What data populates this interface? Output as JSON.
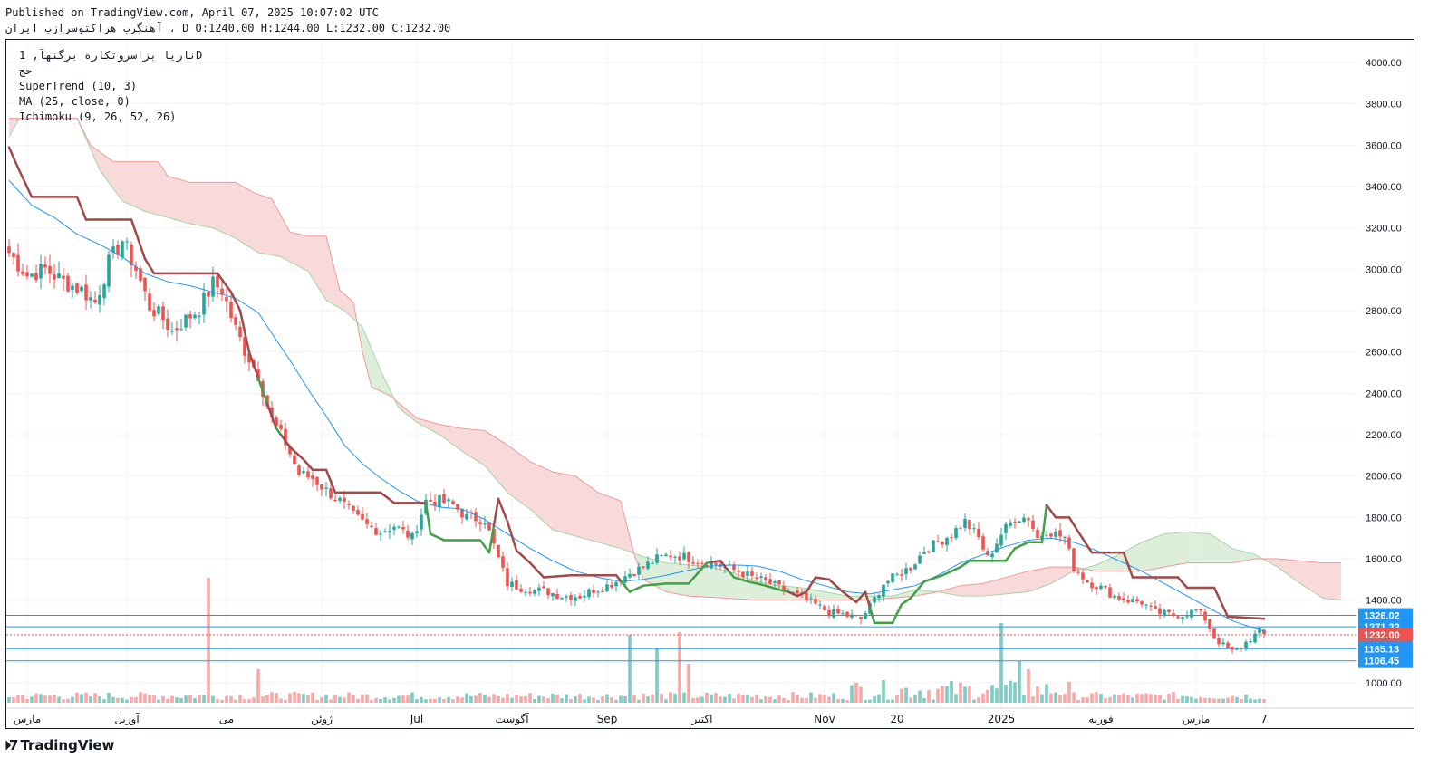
{
  "header": {
    "published": "Published on TradingView.com, April 07, 2025 10:07:02 UTC",
    "ohlc_line": "آهنگرب هراكتوسرازب ايران ، D O:1240.00 H:1244.00 L:1232.00 C:1232.00"
  },
  "legend": {
    "symbol": "ناريا بزاسروتكارة برگنهآ, 1D",
    "sub": "حج",
    "indicators": [
      "SuperTrend (10, 3)",
      "MA (25, close, 0)",
      "Ichimoku (9, 26, 52, 26)"
    ]
  },
  "footer": {
    "brand": "TradingView"
  },
  "colors": {
    "up": "#26a69a",
    "down": "#ef5350",
    "ma": "#2196f3",
    "st_up": "#43a047",
    "st_down": "#a14a4a",
    "cloud_bear": "#f8d4d4",
    "cloud_bull": "#d7ecd4"
  },
  "chart_data": {
    "type": "candlestick",
    "ylim": [
      900,
      4100
    ],
    "y_ticks": [
      "4000.00",
      "3800.00",
      "3600.00",
      "3400.00",
      "3200.00",
      "3000.00",
      "2800.00",
      "2600.00",
      "2400.00",
      "2200.00",
      "2000.00",
      "1800.00",
      "1600.00",
      "1400.00",
      "1000.00"
    ],
    "x_labels": [
      {
        "label": "مارس",
        "i": 4
      },
      {
        "label": "آوریل",
        "i": 26
      },
      {
        "label": "می",
        "i": 48
      },
      {
        "label": "ژوئن",
        "i": 69
      },
      {
        "label": "Jul",
        "i": 90
      },
      {
        "label": "آگوست",
        "i": 111
      },
      {
        "label": "Sep",
        "i": 132
      },
      {
        "label": "اکتبر",
        "i": 153
      },
      {
        "label": "Nov",
        "i": 180
      },
      {
        "label": "20",
        "i": 196
      },
      {
        "label": "2025",
        "i": 219
      },
      {
        "label": "فوریه",
        "i": 241
      },
      {
        "label": "مارس",
        "i": 262
      },
      {
        "label": "7",
        "i": 277
      }
    ],
    "price_levels": [
      {
        "value": 1326.02,
        "label": "1326.02",
        "color": "#2196f3"
      },
      {
        "value": 1271.22,
        "label": "1271.22",
        "color": "#2196f3"
      },
      {
        "value": 1232.0,
        "label": "1232.00",
        "color": "#ef5350"
      },
      {
        "value": 1165.13,
        "label": "1165.13",
        "color": "#2196f3"
      },
      {
        "value": 1106.45,
        "label": "1106.45",
        "color": "#2196f3"
      }
    ],
    "close_anchors": [
      [
        0,
        3080
      ],
      [
        4,
        2970
      ],
      [
        8,
        3000
      ],
      [
        12,
        2940
      ],
      [
        16,
        2900
      ],
      [
        19,
        2840
      ],
      [
        22,
        3030
      ],
      [
        25,
        3140
      ],
      [
        28,
        3000
      ],
      [
        31,
        2820
      ],
      [
        34,
        2760
      ],
      [
        36,
        2700
      ],
      [
        38,
        2740
      ],
      [
        42,
        2810
      ],
      [
        45,
        2930
      ],
      [
        47,
        2900
      ],
      [
        50,
        2710
      ],
      [
        52,
        2610
      ],
      [
        55,
        2490
      ],
      [
        58,
        2270
      ],
      [
        61,
        2160
      ],
      [
        64,
        2010
      ],
      [
        67,
        1990
      ],
      [
        70,
        1930
      ],
      [
        73,
        1880
      ],
      [
        76,
        1810
      ],
      [
        79,
        1760
      ],
      [
        82,
        1730
      ],
      [
        85,
        1760
      ],
      [
        89,
        1700
      ],
      [
        92,
        1880
      ],
      [
        95,
        1880
      ],
      [
        98,
        1860
      ],
      [
        101,
        1800
      ],
      [
        105,
        1790
      ],
      [
        108,
        1600
      ],
      [
        110,
        1480
      ],
      [
        113,
        1460
      ],
      [
        116,
        1450
      ],
      [
        119,
        1440
      ],
      [
        122,
        1420
      ],
      [
        126,
        1420
      ],
      [
        129,
        1450
      ],
      [
        131,
        1460
      ],
      [
        134,
        1490
      ],
      [
        137,
        1530
      ],
      [
        140,
        1560
      ],
      [
        143,
        1600
      ],
      [
        146,
        1620
      ],
      [
        149,
        1610
      ],
      [
        152,
        1590
      ],
      [
        155,
        1580
      ],
      [
        158,
        1560
      ],
      [
        161,
        1540
      ],
      [
        164,
        1510
      ],
      [
        167,
        1490
      ],
      [
        170,
        1460
      ],
      [
        174,
        1420
      ],
      [
        177,
        1390
      ],
      [
        181,
        1340
      ],
      [
        184,
        1330
      ],
      [
        186,
        1320
      ],
      [
        188,
        1310
      ],
      [
        190,
        1370
      ],
      [
        193,
        1480
      ],
      [
        196,
        1520
      ],
      [
        199,
        1560
      ],
      [
        202,
        1640
      ],
      [
        205,
        1680
      ],
      [
        208,
        1720
      ],
      [
        211,
        1780
      ],
      [
        214,
        1700
      ],
      [
        216,
        1600
      ],
      [
        219,
        1720
      ],
      [
        222,
        1800
      ],
      [
        225,
        1800
      ],
      [
        227,
        1700
      ],
      [
        229,
        1740
      ],
      [
        231,
        1720
      ],
      [
        233,
        1700
      ],
      [
        235,
        1560
      ],
      [
        238,
        1490
      ],
      [
        241,
        1460
      ],
      [
        244,
        1420
      ],
      [
        247,
        1400
      ],
      [
        250,
        1390
      ],
      [
        253,
        1340
      ],
      [
        256,
        1330
      ],
      [
        259,
        1330
      ],
      [
        262,
        1350
      ],
      [
        264,
        1310
      ],
      [
        266,
        1220
      ],
      [
        268,
        1180
      ],
      [
        270,
        1150
      ],
      [
        272,
        1175
      ],
      [
        274,
        1215
      ],
      [
        276,
        1245
      ],
      [
        277,
        1232
      ]
    ],
    "supertrend_anchors": [
      [
        0,
        3590
      ],
      [
        2,
        3490
      ],
      [
        5,
        3350
      ],
      [
        15,
        3350
      ],
      [
        17,
        3240
      ],
      [
        27,
        3240
      ],
      [
        30,
        3050
      ],
      [
        32,
        2980
      ],
      [
        46,
        2980
      ],
      [
        49,
        2890
      ],
      [
        51,
        2800
      ],
      [
        53,
        2600
      ],
      [
        56,
        2410
      ],
      [
        59,
        2230
      ],
      [
        62,
        2140
      ],
      [
        65,
        2080
      ],
      [
        67,
        2030
      ],
      [
        70,
        2030
      ],
      [
        72,
        1920
      ],
      [
        82,
        1920
      ],
      [
        85,
        1870
      ],
      [
        92,
        1870
      ],
      [
        93,
        1720
      ],
      [
        96,
        1690
      ],
      [
        104,
        1690
      ],
      [
        106,
        1630
      ],
      [
        108,
        1890
      ],
      [
        110,
        1780
      ],
      [
        112,
        1640
      ],
      [
        115,
        1580
      ],
      [
        118,
        1510
      ],
      [
        124,
        1520
      ],
      [
        134,
        1520
      ],
      [
        137,
        1440
      ],
      [
        140,
        1470
      ],
      [
        145,
        1480
      ],
      [
        150,
        1480
      ],
      [
        154,
        1580
      ],
      [
        157,
        1590
      ],
      [
        160,
        1510
      ],
      [
        163,
        1490
      ],
      [
        167,
        1470
      ],
      [
        170,
        1450
      ],
      [
        172,
        1440
      ],
      [
        174,
        1420
      ],
      [
        176,
        1440
      ],
      [
        178,
        1510
      ],
      [
        181,
        1500
      ],
      [
        184,
        1440
      ],
      [
        187,
        1390
      ],
      [
        189,
        1440
      ],
      [
        191,
        1290
      ],
      [
        195,
        1290
      ],
      [
        197,
        1380
      ],
      [
        199,
        1410
      ],
      [
        202,
        1490
      ],
      [
        206,
        1520
      ],
      [
        210,
        1560
      ],
      [
        212,
        1590
      ],
      [
        220,
        1590
      ],
      [
        222,
        1650
      ],
      [
        225,
        1680
      ],
      [
        228,
        1680
      ],
      [
        229,
        1860
      ],
      [
        231,
        1800
      ],
      [
        234,
        1800
      ],
      [
        236,
        1730
      ],
      [
        239,
        1630
      ],
      [
        246,
        1630
      ],
      [
        248,
        1510
      ],
      [
        258,
        1510
      ],
      [
        260,
        1460
      ],
      [
        266,
        1460
      ],
      [
        269,
        1320
      ],
      [
        277,
        1310
      ]
    ],
    "ma_anchors": [
      [
        0,
        3430
      ],
      [
        5,
        3310
      ],
      [
        10,
        3250
      ],
      [
        15,
        3170
      ],
      [
        20,
        3120
      ],
      [
        25,
        3060
      ],
      [
        30,
        2980
      ],
      [
        35,
        2940
      ],
      [
        40,
        2920
      ],
      [
        45,
        2890
      ],
      [
        50,
        2860
      ],
      [
        55,
        2790
      ],
      [
        58,
        2690
      ],
      [
        62,
        2560
      ],
      [
        66,
        2420
      ],
      [
        70,
        2290
      ],
      [
        74,
        2150
      ],
      [
        78,
        2060
      ],
      [
        82,
        1990
      ],
      [
        86,
        1930
      ],
      [
        90,
        1880
      ],
      [
        95,
        1850
      ],
      [
        100,
        1840
      ],
      [
        105,
        1790
      ],
      [
        110,
        1720
      ],
      [
        115,
        1650
      ],
      [
        120,
        1590
      ],
      [
        125,
        1540
      ],
      [
        130,
        1510
      ],
      [
        135,
        1490
      ],
      [
        140,
        1500
      ],
      [
        145,
        1520
      ],
      [
        150,
        1545
      ],
      [
        155,
        1565
      ],
      [
        160,
        1570
      ],
      [
        165,
        1565
      ],
      [
        170,
        1540
      ],
      [
        175,
        1500
      ],
      [
        180,
        1470
      ],
      [
        185,
        1440
      ],
      [
        190,
        1430
      ],
      [
        195,
        1450
      ],
      [
        200,
        1470
      ],
      [
        205,
        1520
      ],
      [
        210,
        1580
      ],
      [
        215,
        1620
      ],
      [
        220,
        1660
      ],
      [
        225,
        1690
      ],
      [
        230,
        1700
      ],
      [
        235,
        1680
      ],
      [
        240,
        1640
      ],
      [
        245,
        1590
      ],
      [
        250,
        1540
      ],
      [
        255,
        1480
      ],
      [
        260,
        1420
      ],
      [
        265,
        1360
      ],
      [
        270,
        1300
      ],
      [
        274,
        1270
      ],
      [
        277,
        1250
      ]
    ],
    "cloud_a_anchors": [
      [
        0,
        3640
      ],
      [
        2,
        3720
      ],
      [
        5,
        3730
      ],
      [
        15,
        3730
      ],
      [
        20,
        3480
      ],
      [
        25,
        3330
      ],
      [
        30,
        3280
      ],
      [
        40,
        3220
      ],
      [
        45,
        3200
      ],
      [
        50,
        3150
      ],
      [
        55,
        3080
      ],
      [
        60,
        3060
      ],
      [
        66,
        2990
      ],
      [
        70,
        2850
      ],
      [
        74,
        2800
      ],
      [
        78,
        2720
      ],
      [
        82,
        2510
      ],
      [
        86,
        2330
      ],
      [
        90,
        2260
      ],
      [
        95,
        2200
      ],
      [
        100,
        2120
      ],
      [
        105,
        2050
      ],
      [
        110,
        1920
      ],
      [
        115,
        1840
      ],
      [
        120,
        1740
      ],
      [
        125,
        1710
      ],
      [
        130,
        1680
      ],
      [
        135,
        1650
      ],
      [
        140,
        1610
      ],
      [
        145,
        1580
      ],
      [
        150,
        1570
      ],
      [
        155,
        1560
      ],
      [
        160,
        1530
      ],
      [
        165,
        1490
      ],
      [
        170,
        1470
      ],
      [
        175,
        1460
      ],
      [
        180,
        1440
      ],
      [
        185,
        1420
      ],
      [
        190,
        1420
      ],
      [
        195,
        1420
      ],
      [
        200,
        1450
      ],
      [
        205,
        1440
      ],
      [
        210,
        1420
      ],
      [
        215,
        1420
      ],
      [
        220,
        1430
      ],
      [
        225,
        1440
      ],
      [
        230,
        1480
      ],
      [
        235,
        1540
      ],
      [
        240,
        1570
      ],
      [
        245,
        1620
      ],
      [
        250,
        1680
      ],
      [
        255,
        1720
      ],
      [
        260,
        1730
      ],
      [
        265,
        1720
      ],
      [
        270,
        1650
      ],
      [
        275,
        1620
      ],
      [
        280,
        1560
      ],
      [
        285,
        1480
      ],
      [
        290,
        1410
      ],
      [
        294,
        1400
      ]
    ],
    "cloud_b_anchors": [
      [
        0,
        3730
      ],
      [
        10,
        3730
      ],
      [
        15,
        3730
      ],
      [
        18,
        3600
      ],
      [
        23,
        3520
      ],
      [
        33,
        3520
      ],
      [
        35,
        3450
      ],
      [
        40,
        3420
      ],
      [
        50,
        3420
      ],
      [
        54,
        3370
      ],
      [
        58,
        3340
      ],
      [
        62,
        3180
      ],
      [
        66,
        3160
      ],
      [
        70,
        3160
      ],
      [
        73,
        2900
      ],
      [
        76,
        2840
      ],
      [
        78,
        2600
      ],
      [
        80,
        2430
      ],
      [
        84,
        2390
      ],
      [
        90,
        2280
      ],
      [
        95,
        2250
      ],
      [
        100,
        2230
      ],
      [
        105,
        2220
      ],
      [
        110,
        2150
      ],
      [
        115,
        2070
      ],
      [
        120,
        2020
      ],
      [
        125,
        2000
      ],
      [
        130,
        1920
      ],
      [
        135,
        1880
      ],
      [
        138,
        1620
      ],
      [
        140,
        1500
      ],
      [
        145,
        1440
      ],
      [
        150,
        1420
      ],
      [
        158,
        1410
      ],
      [
        165,
        1400
      ],
      [
        175,
        1400
      ],
      [
        185,
        1400
      ],
      [
        190,
        1400
      ],
      [
        195,
        1410
      ],
      [
        200,
        1420
      ],
      [
        205,
        1440
      ],
      [
        210,
        1470
      ],
      [
        215,
        1480
      ],
      [
        220,
        1510
      ],
      [
        225,
        1540
      ],
      [
        230,
        1560
      ],
      [
        235,
        1560
      ],
      [
        240,
        1540
      ],
      [
        245,
        1540
      ],
      [
        250,
        1540
      ],
      [
        255,
        1560
      ],
      [
        260,
        1580
      ],
      [
        265,
        1580
      ],
      [
        270,
        1580
      ],
      [
        275,
        1600
      ],
      [
        280,
        1600
      ],
      [
        285,
        1590
      ],
      [
        290,
        1580
      ],
      [
        294,
        1580
      ]
    ],
    "volume_spikes": [
      [
        44,
        1380
      ],
      [
        55,
        370
      ],
      [
        137,
        750
      ],
      [
        143,
        610
      ],
      [
        148,
        780
      ],
      [
        150,
        430
      ],
      [
        219,
        880
      ],
      [
        223,
        460
      ],
      [
        225,
        370
      ]
    ]
  }
}
